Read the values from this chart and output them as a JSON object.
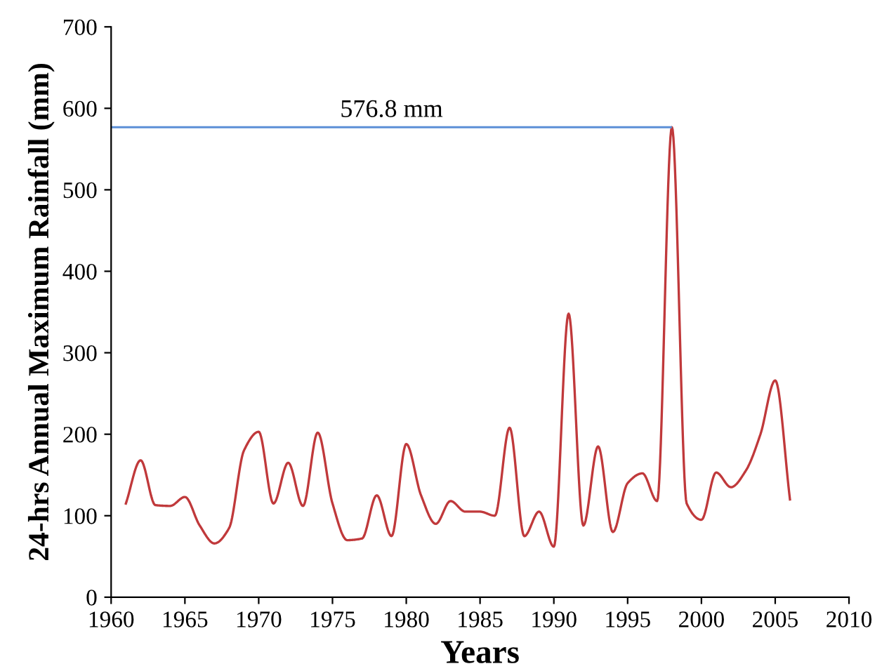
{
  "chart_data": {
    "type": "line",
    "xlabel": "Years",
    "ylabel": "24-hrs Annual Maximum Rainfall (mm)",
    "x": [
      1961,
      1962,
      1963,
      1964,
      1965,
      1966,
      1967,
      1968,
      1969,
      1970,
      1971,
      1972,
      1973,
      1974,
      1975,
      1976,
      1977,
      1978,
      1979,
      1980,
      1981,
      1982,
      1983,
      1984,
      1985,
      1986,
      1987,
      1988,
      1989,
      1990,
      1991,
      1992,
      1993,
      1994,
      1995,
      1996,
      1997,
      1998,
      1999,
      2000,
      2001,
      2002,
      2003,
      2004,
      2005,
      2006
    ],
    "series": [
      {
        "color": "#c0393b",
        "values": [
          115,
          168,
          113,
          112,
          123,
          88,
          66,
          85,
          180,
          203,
          115,
          165,
          112,
          202,
          115,
          70,
          72,
          125,
          75,
          188,
          125,
          90,
          118,
          105,
          105,
          100,
          208,
          75,
          105,
          62,
          348,
          88,
          185,
          80,
          140,
          152,
          118,
          576.8,
          115,
          95,
          153,
          135,
          155,
          200,
          266,
          120
        ]
      }
    ],
    "xlim": [
      1960,
      2010
    ],
    "xticks": [
      1960,
      1965,
      1970,
      1975,
      1980,
      1985,
      1990,
      1995,
      2000,
      2005,
      2010
    ],
    "ylim": [
      0,
      700
    ],
    "yticks": [
      0,
      100,
      200,
      300,
      400,
      500,
      600,
      700
    ],
    "ref_lines": [
      {
        "axis": "y",
        "value": 576.8,
        "label": "576.8 mm",
        "color": "#5b8fd6"
      }
    ],
    "grid": false,
    "marker": "none",
    "line_style": "solid"
  }
}
